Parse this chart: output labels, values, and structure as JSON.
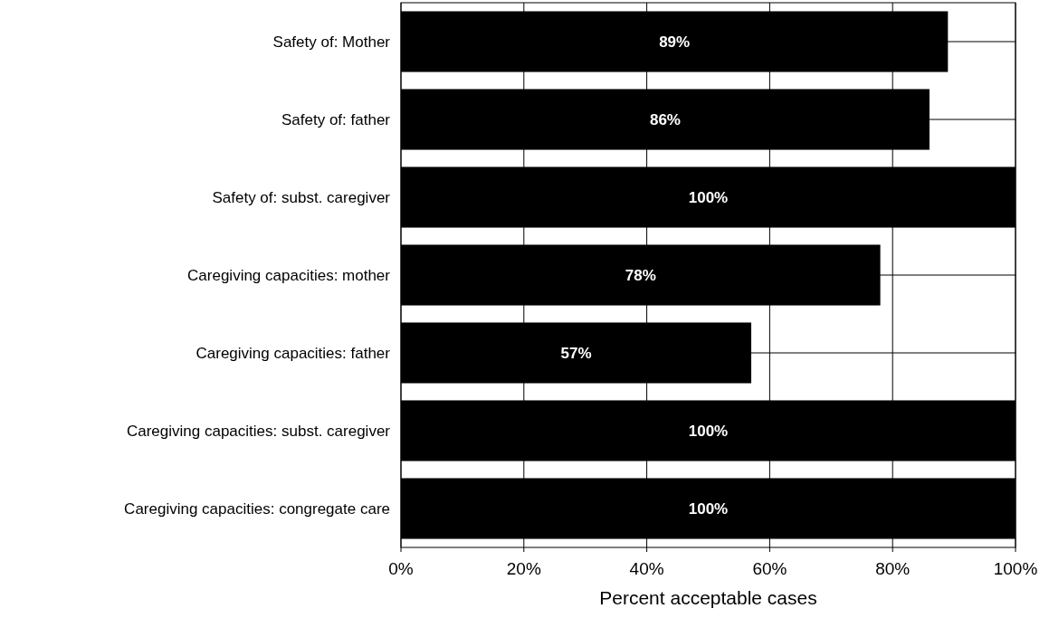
{
  "chart_data": {
    "type": "bar",
    "orientation": "horizontal",
    "xlabel": "Percent acceptable cases",
    "categories": [
      "Safety of: Mother",
      "Safety of: father",
      "Safety of: subst. caregiver",
      "Caregiving capacities: mother",
      "Caregiving capacities: father",
      "Caregiving capacities: subst. caregiver",
      "Caregiving capacities: congregate care"
    ],
    "values": [
      89,
      86,
      100,
      78,
      57,
      100,
      100
    ],
    "value_labels": [
      "89%",
      "86%",
      "100%",
      "78%",
      "57%",
      "100%",
      "100%"
    ],
    "color": "#000000",
    "xlim": [
      0,
      100
    ],
    "xticks": [
      {
        "value": 0,
        "label": "0%"
      },
      {
        "value": 20,
        "label": "20%"
      },
      {
        "value": 40,
        "label": "40%"
      },
      {
        "value": 60,
        "label": "60%"
      },
      {
        "value": 80,
        "label": "80%"
      },
      {
        "value": 100,
        "label": "100%"
      }
    ],
    "grid": true
  }
}
